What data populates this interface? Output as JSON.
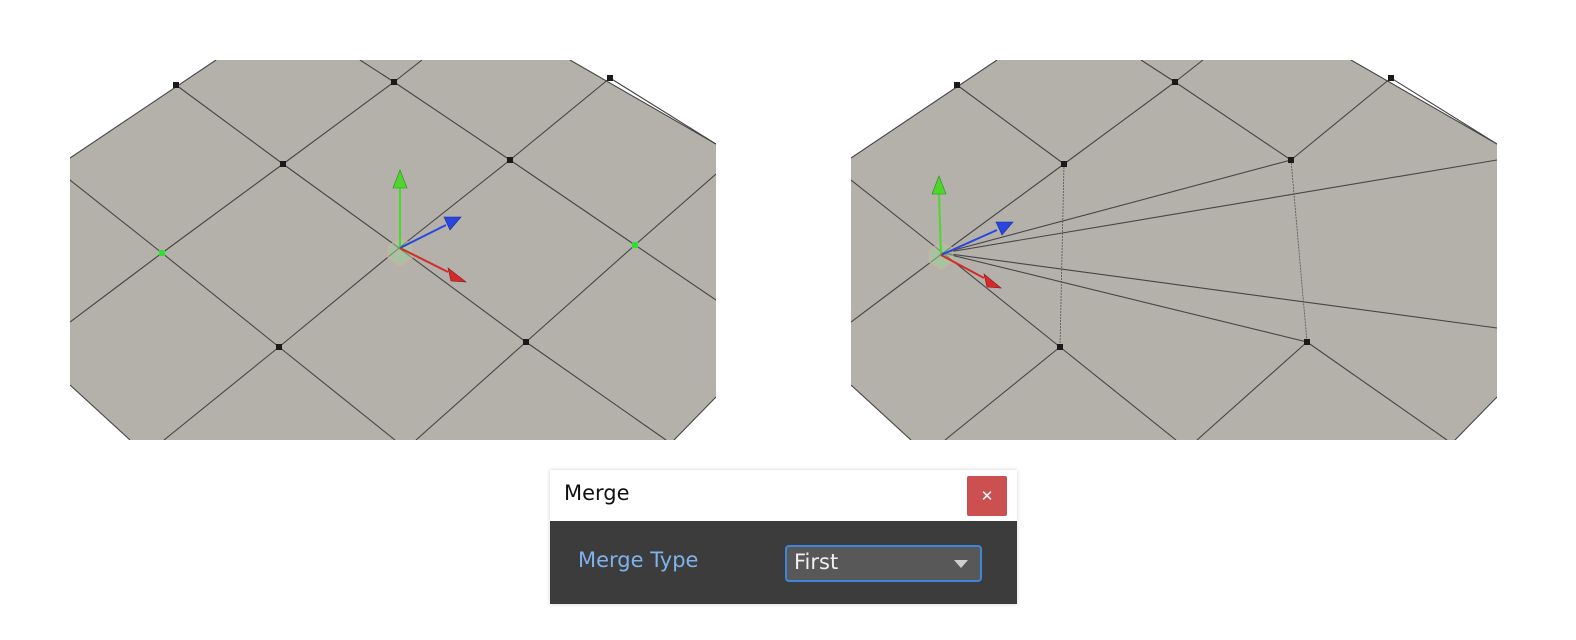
{
  "dialog": {
    "title": "Merge",
    "close_icon": "close-icon",
    "field_label": "Merge Type",
    "selected_value": "First"
  },
  "viewports": [
    {
      "state": "before-merge",
      "selected_vertices": 2
    },
    {
      "state": "after-merge",
      "merge_type": "First"
    }
  ],
  "colors": {
    "mesh_face": "#b3b1aa",
    "edge": "#444444",
    "vertex": "#1a1a1a",
    "selected_vertex": "#33dd33",
    "axis_x": "#d62a2a",
    "axis_y": "#4ed62e",
    "axis_z": "#2a46e0",
    "dialog_body": "#3c3c3c",
    "label_accent": "#7fb2ec",
    "close_button": "#cd5050"
  }
}
